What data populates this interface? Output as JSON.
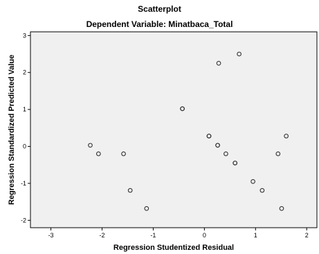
{
  "chart_data": {
    "type": "scatter",
    "title": "Scatterplot",
    "subtitle": "Dependent Variable: Minatbaca_Total",
    "xlabel": "Regression Studentized Residual",
    "ylabel": "Regression Standardized Predicted Value",
    "xlim": [
      -3.4,
      2.2
    ],
    "ylim": [
      -2.2,
      3.1
    ],
    "xticks": [
      -3,
      -2,
      -1,
      0,
      1,
      2
    ],
    "yticks": [
      -2,
      -1,
      0,
      1,
      2,
      3
    ],
    "grid": false,
    "plot_background": "#f0f0f0",
    "marker_color": "#333333",
    "points": [
      {
        "x": -2.23,
        "y": 0.03
      },
      {
        "x": -2.07,
        "y": -0.2
      },
      {
        "x": -1.58,
        "y": -0.2
      },
      {
        "x": -1.45,
        "y": -1.19
      },
      {
        "x": -1.13,
        "y": -1.68
      },
      {
        "x": -0.43,
        "y": 1.02
      },
      {
        "x": -0.43,
        "y": 1.02
      },
      {
        "x": 0.09,
        "y": 0.28
      },
      {
        "x": 0.09,
        "y": 0.28
      },
      {
        "x": 0.26,
        "y": 0.03
      },
      {
        "x": 0.26,
        "y": 0.03
      },
      {
        "x": 0.42,
        "y": -0.2
      },
      {
        "x": 0.6,
        "y": -0.45
      },
      {
        "x": 0.6,
        "y": -0.45
      },
      {
        "x": 0.28,
        "y": 2.25
      },
      {
        "x": 0.68,
        "y": 2.5
      },
      {
        "x": 0.95,
        "y": -0.95
      },
      {
        "x": 1.13,
        "y": -1.19
      },
      {
        "x": 1.44,
        "y": -0.2
      },
      {
        "x": 1.51,
        "y": -1.68
      },
      {
        "x": 1.6,
        "y": 0.28
      }
    ]
  }
}
